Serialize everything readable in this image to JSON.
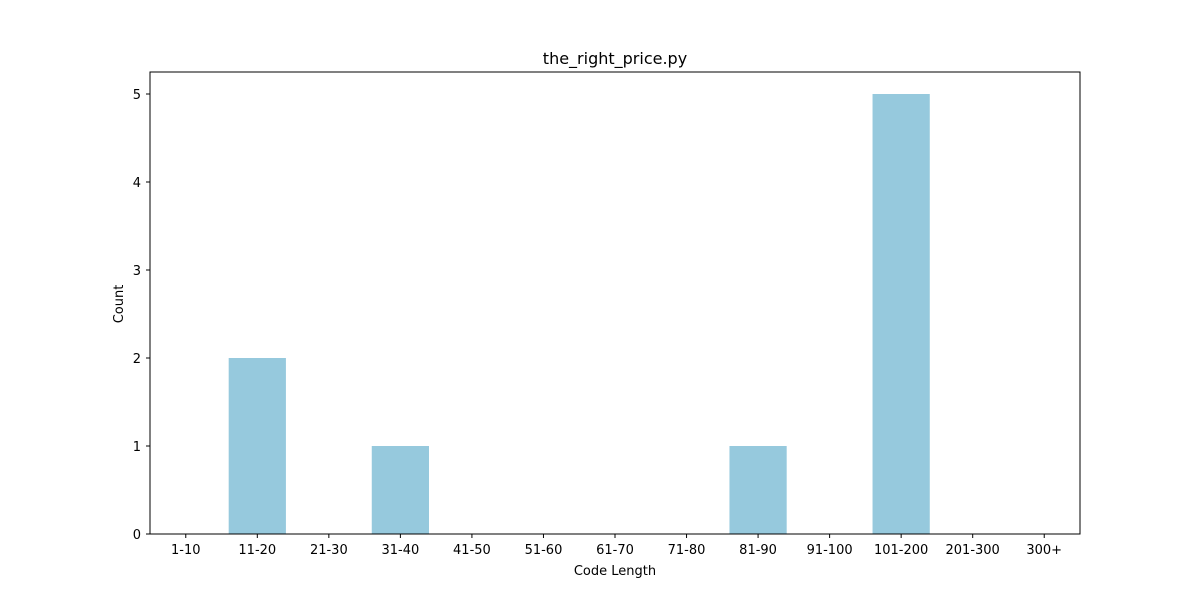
{
  "chart_data": {
    "type": "bar",
    "title": "the_right_price.py",
    "xlabel": "Code Length",
    "ylabel": "Count",
    "categories": [
      "1-10",
      "11-20",
      "21-30",
      "31-40",
      "41-50",
      "51-60",
      "61-70",
      "71-80",
      "81-90",
      "91-100",
      "101-200",
      "201-300",
      "300+"
    ],
    "values": [
      0,
      2,
      0,
      1,
      0,
      0,
      0,
      0,
      1,
      0,
      5,
      0,
      0
    ],
    "ylim": [
      0,
      5.25
    ],
    "yticks": [
      0,
      1,
      2,
      3,
      4,
      5
    ],
    "grid": false,
    "bar_color": "#96c9dd"
  }
}
